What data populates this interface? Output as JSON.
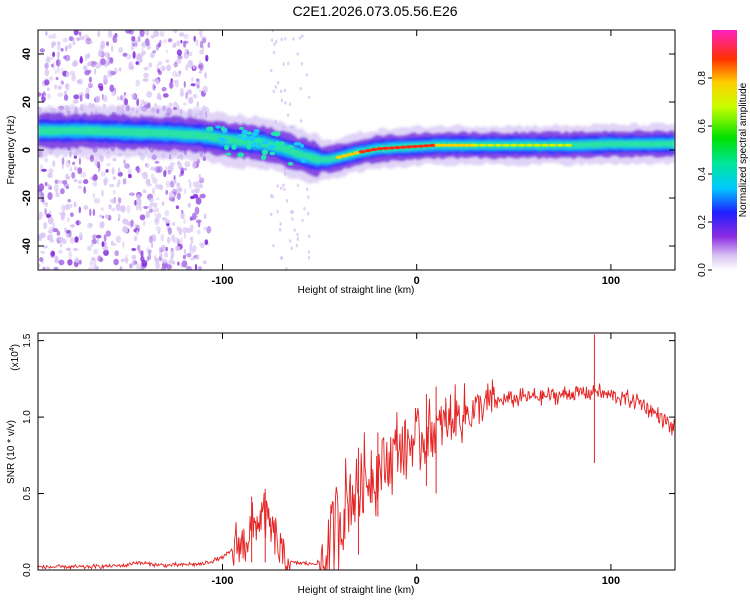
{
  "chart_data": [
    {
      "type": "heatmap",
      "title": "C2E1.2026.073.05.56.E26",
      "xlabel": "Height of straight line (km)",
      "ylabel": "Frequency (Hz)",
      "xlim": [
        -195,
        133
      ],
      "ylim": [
        -50,
        50
      ],
      "xticks": [
        -100,
        0,
        100
      ],
      "xtick_labels": [
        "-100",
        "0",
        "100"
      ],
      "yticks": [
        -40,
        -20,
        0,
        20,
        40
      ],
      "ytick_labels": [
        "-40",
        "-20",
        "0",
        "20",
        "40"
      ],
      "colorbar": {
        "label": "Normalized spectral amplitude",
        "range": [
          0,
          1
        ],
        "ticks": [
          0.0,
          0.2,
          0.4,
          0.6,
          0.8
        ],
        "tick_labels": [
          "0.0",
          "0.2",
          "0.4",
          "0.6",
          "0.8"
        ]
      },
      "ridge": {
        "x": [
          -195,
          -170,
          -150,
          -130,
          -110,
          -95,
          -80,
          -70,
          -60,
          -50,
          -45,
          -40,
          -35,
          -30,
          -20,
          -10,
          0,
          10,
          20,
          40,
          60,
          80,
          100,
          120,
          133
        ],
        "frequency": [
          8,
          8,
          7.5,
          7,
          6,
          4,
          3,
          1,
          -2,
          -4,
          -4,
          -3,
          -2,
          -1,
          0.5,
          1,
          1.5,
          2,
          2,
          2,
          2,
          2,
          2.5,
          2.5,
          2.5
        ]
      }
    },
    {
      "type": "line",
      "title": "",
      "xlabel": "Height of straight line (km)",
      "ylabel": "SNR (10 * v/v)",
      "scale_label": "(x10",
      "scale_exponent": "4",
      "scale_close": ")",
      "xlim": [
        -195,
        133
      ],
      "ylim": [
        0,
        1.55
      ],
      "xticks": [
        -100,
        0,
        100
      ],
      "xtick_labels": [
        "-100",
        "0",
        "100"
      ],
      "yticks": [
        0.0,
        0.5,
        1.0,
        1.5
      ],
      "ytick_labels": [
        "0.0",
        "0.5",
        "1.0",
        "1.5"
      ],
      "series": [
        {
          "name": "SNR",
          "color": "#e52222",
          "x": [
            -195,
            -170,
            -150,
            -145,
            -130,
            -110,
            -100,
            -90,
            -85,
            -80,
            -75,
            -70,
            -65,
            -55,
            -48,
            -42,
            -35,
            -30,
            -20,
            -10,
            0,
            10,
            20,
            30,
            40,
            55,
            70,
            85,
            90,
            92,
            95,
            105,
            115,
            120,
            125,
            130,
            133
          ],
          "values": [
            0.02,
            0.02,
            0.03,
            0.05,
            0.03,
            0.04,
            0.08,
            0.18,
            0.25,
            0.35,
            0.28,
            0.1,
            0.05,
            0.04,
            0.05,
            0.3,
            0.45,
            0.55,
            0.65,
            0.8,
            0.85,
            0.9,
            1.0,
            1.05,
            1.1,
            1.13,
            1.14,
            1.16,
            1.16,
            1.18,
            1.15,
            1.13,
            1.1,
            1.05,
            1.0,
            0.95,
            0.92
          ],
          "spikes": [
            {
              "x": 91.5,
              "high": 1.54,
              "low": 0.7
            },
            {
              "x": -78,
              "high": 0.53,
              "low": 0.05
            },
            {
              "x": -85,
              "high": 0.48,
              "low": 0.05
            },
            {
              "x": 10,
              "high": 1.2,
              "low": 0.5
            },
            {
              "x": 5,
              "high": 1.15,
              "low": 0.55
            },
            {
              "x": -30,
              "high": 0.8,
              "low": 0.1
            },
            {
              "x": -20,
              "high": 0.9,
              "low": 0.35
            }
          ]
        }
      ]
    }
  ]
}
